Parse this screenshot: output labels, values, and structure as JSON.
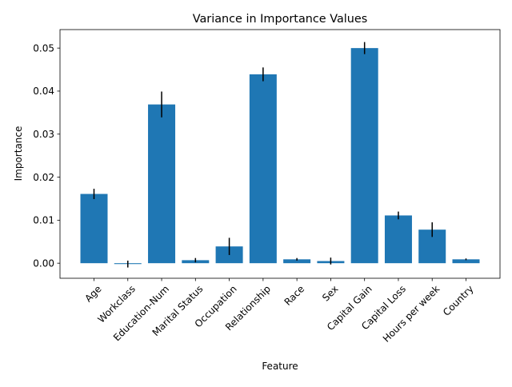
{
  "chart_data": {
    "type": "bar",
    "title": "Variance in Importance Values",
    "xlabel": "Feature",
    "ylabel": "Importance",
    "categories": [
      "Age",
      "Workclass",
      "Education-Num",
      "Marital Status",
      "Occupation",
      "Relationship",
      "Race",
      "Sex",
      "Capital Gain",
      "Capital Loss",
      "Hours per week",
      "Country"
    ],
    "values": [
      0.0161,
      -0.0002,
      0.0369,
      0.0007,
      0.0039,
      0.0439,
      0.0009,
      0.0005,
      0.05,
      0.0111,
      0.0078,
      0.0009
    ],
    "errors": [
      0.0012,
      0.0008,
      0.003,
      0.0005,
      0.002,
      0.0016,
      0.0003,
      0.0008,
      0.0014,
      0.0009,
      0.0017,
      0.0002
    ],
    "ylim": [
      -0.0035,
      0.0543
    ],
    "yticks": [
      0.0,
      0.01,
      0.02,
      0.03,
      0.04,
      0.05
    ],
    "ytick_labels": [
      "0.00",
      "0.01",
      "0.02",
      "0.03",
      "0.04",
      "0.05"
    ],
    "grid": false,
    "legend": "none",
    "colors": {
      "bar": "#1f77b4",
      "error": "#000000",
      "axis": "#000000"
    }
  }
}
